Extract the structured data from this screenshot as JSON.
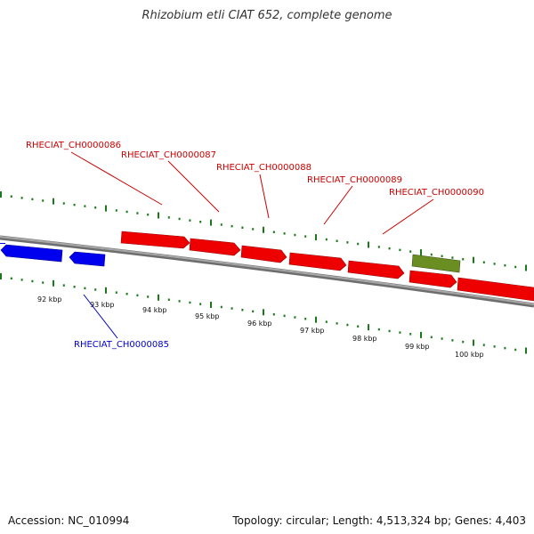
{
  "title": "Rhizobium etli CIAT 652, complete genome",
  "accession": "Accession: NC_010994",
  "summary": "Topology: circular; Length: 4,513,324 bp; Genes: 4,403",
  "colors": {
    "backbone": "#8a8a8a",
    "gene_forward": "#ff0000",
    "gene_reverse": "#0000ee",
    "gene_other": "#6b8e23",
    "label_forward": "#cc0000",
    "label_reverse": "#0000cc",
    "dots": "#1a7a1a"
  },
  "scale_labels": [
    "92 kbp",
    "93 kbp",
    "94 kbp",
    "95 kbp",
    "96 kbp",
    "97 kbp",
    "98 kbp",
    "99 kbp",
    "100 kbp"
  ],
  "genes": [
    {
      "name": "RHECIAT_CH0000085",
      "strand": "reverse",
      "labeled": true
    },
    {
      "name": "RHECIAT_CH0000086",
      "strand": "forward",
      "labeled": true
    },
    {
      "name": "RHECIAT_CH0000087",
      "strand": "forward",
      "labeled": true
    },
    {
      "name": "RHECIAT_CH0000088",
      "strand": "forward",
      "labeled": true
    },
    {
      "name": "RHECIAT_CH0000089",
      "strand": "forward",
      "labeled": true
    },
    {
      "name": "RHECIAT_CH0000090",
      "strand": "forward",
      "labeled": true
    }
  ]
}
